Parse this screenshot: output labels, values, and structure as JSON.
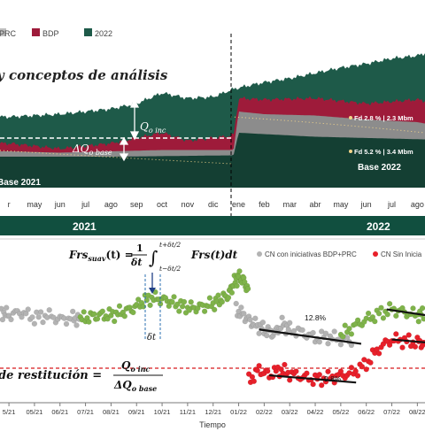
{
  "chart_data": [
    {
      "type": "area",
      "legend": [
        "PRC",
        "BDP",
        "2022"
      ],
      "legend_placement": "top-left",
      "title": "y conceptos de análisis",
      "x_ticks": [
        "r",
        "may",
        "jun",
        "jul",
        "ago",
        "sep",
        "oct",
        "nov",
        "dic",
        "ene",
        "feb",
        "mar",
        "abr",
        "may",
        "jun",
        "jul",
        "ago"
      ],
      "x_tick_index": [
        0,
        1,
        2,
        3,
        4,
        5,
        6,
        7,
        8,
        9,
        10,
        11,
        12,
        13,
        14,
        15,
        16
      ],
      "x_range": [
        -0.35,
        16.3
      ],
      "year_labels": [
        "2021",
        "2022"
      ],
      "period_boundary_index": 8.8,
      "series": [
        {
          "name": "2022",
          "color": "#1e5a49",
          "x": [
            0,
            1,
            2,
            3,
            4,
            5,
            6,
            7,
            8,
            8.8,
            9.5,
            10,
            11,
            12,
            13,
            14,
            15,
            16,
            16.3
          ],
          "values": [
            0.42,
            0.43,
            0.44,
            0.46,
            0.48,
            0.52,
            0.6,
            0.56,
            0.57,
            0.63,
            0.66,
            0.68,
            0.71,
            0.75,
            0.79,
            0.82,
            0.86,
            0.88,
            0.9
          ]
        },
        {
          "name": "BDP",
          "color": "#9e1b3a",
          "x": [
            0,
            2,
            4,
            5,
            6,
            7,
            8,
            8.8,
            9,
            10,
            12,
            14,
            16,
            16.3
          ],
          "values": [
            0.22,
            0.18,
            0.22,
            0.26,
            0.3,
            0.24,
            0.26,
            0.28,
            0.56,
            0.55,
            0.56,
            0.52,
            0.55,
            0.54
          ]
        },
        {
          "name": "gray",
          "color": "#8c8c8c",
          "x": [
            0,
            2,
            4,
            6,
            8,
            8.8,
            9,
            10,
            12,
            14,
            16,
            16.3
          ],
          "values": [
            0.16,
            0.15,
            0.16,
            0.17,
            0.17,
            0.17,
            0.46,
            0.44,
            0.43,
            0.4,
            0.38,
            0.37
          ]
        },
        {
          "name": "base",
          "color": "#143f33",
          "x": [
            0,
            4,
            8.8,
            9,
            12,
            16.3
          ],
          "values": [
            0.12,
            0.12,
            0.13,
            0.3,
            0.27,
            0.25
          ]
        }
      ],
      "annotations": {
        "q_inc": "Q",
        "q_inc_sub": "o inc",
        "dq_base": "ΔQ",
        "dq_base_sub": "o base",
        "fd1": "Fd 2.8 % | 2.3 Mbm",
        "fd2": "Fd 5.2 % | 3.4 Mbm",
        "base1": "Base 2021",
        "base2": "Base 2022"
      }
    },
    {
      "type": "scatter",
      "xlabel": "Tiempo",
      "x_ticks": [
        "5/21",
        "05/21",
        "06/21",
        "07/21",
        "08/21",
        "09/21",
        "10/21",
        "11/21",
        "12/21",
        "01/22",
        "02/22",
        "03/22",
        "04/22",
        "05/22",
        "06/22",
        "07/22",
        "08/22"
      ],
      "x_tick_index": [
        0,
        1,
        2,
        3,
        4,
        5,
        6,
        7,
        8,
        9,
        10,
        11,
        12,
        13,
        14,
        15,
        16
      ],
      "x_range": [
        -0.35,
        16.3
      ],
      "y_range": [
        0,
        1
      ],
      "legend": [
        "CN con iniciativas BDP+PRC",
        "CN Sin Inicia"
      ],
      "legend_placement": "top-right",
      "reference_line": 0.21,
      "series": [
        {
          "name": "CN con iniciativas BDP+PRC",
          "color": "#b3b3b3",
          "part": "before",
          "x": [
            -0.3,
            0,
            0.5,
            1,
            1.5,
            2,
            2.5,
            2.8
          ],
          "values": [
            0.6,
            0.58,
            0.6,
            0.56,
            0.58,
            0.55,
            0.56,
            0.55
          ]
        },
        {
          "name": "CN con iniciativas BDP+PRC",
          "color": "#7fb34a",
          "part": "during",
          "x": [
            2.8,
            3.2,
            3.6,
            4,
            4.4,
            4.8,
            5.2,
            5.6,
            6,
            6.4,
            6.8,
            7.2,
            7.6,
            8,
            8.3,
            8.6,
            8.8,
            9.0,
            9.2,
            9.4
          ],
          "values": [
            0.55,
            0.57,
            0.58,
            0.58,
            0.6,
            0.62,
            0.67,
            0.7,
            0.69,
            0.67,
            0.64,
            0.63,
            0.64,
            0.66,
            0.69,
            0.72,
            0.8,
            0.85,
            0.82,
            0.74
          ]
        },
        {
          "name": "CN con iniciativas BDP+PRC",
          "color": "#b3b3b3",
          "part": "scatter-2022",
          "x": [
            8.9,
            9.2,
            9.5,
            9.8,
            10.1,
            10.4,
            10.7,
            11,
            11.5,
            12,
            12.5,
            13,
            13.5
          ],
          "values": [
            0.62,
            0.58,
            0.53,
            0.5,
            0.47,
            0.45,
            0.52,
            0.48,
            0.46,
            0.42,
            0.43,
            0.41,
            0.4
          ]
        },
        {
          "name": "CN con iniciativas BDP+PRC",
          "color": "#7fb34a",
          "part": "green-2022",
          "x": [
            13,
            13.5,
            14,
            14.5,
            15,
            15.5,
            16,
            16.3
          ],
          "values": [
            0.44,
            0.5,
            0.55,
            0.59,
            0.62,
            0.6,
            0.58,
            0.59
          ]
        },
        {
          "name": "CN Sin Inicia",
          "color": "#e8202a",
          "part": "red-2022",
          "x": [
            9.4,
            9.8,
            10.2,
            10.6,
            11,
            11.5,
            12,
            12.5,
            13,
            13.5,
            14,
            14.5,
            15,
            15.5,
            16,
            16.3
          ],
          "values": [
            0.12,
            0.2,
            0.16,
            0.2,
            0.17,
            0.15,
            0.13,
            0.14,
            0.16,
            0.18,
            0.24,
            0.35,
            0.41,
            0.4,
            0.39,
            0.38
          ]
        }
      ],
      "trend_lines": [
        {
          "x": [
            9.8,
            13.8
          ],
          "values": [
            0.48,
            0.38
          ]
        },
        {
          "x": [
            10.2,
            13.6
          ],
          "values": [
            0.16,
            0.11
          ]
        },
        {
          "x": [
            14.8,
            16.3
          ],
          "values": [
            0.62,
            0.58
          ]
        },
        {
          "x": [
            15,
            16.3
          ],
          "values": [
            0.41,
            0.39
          ]
        }
      ],
      "annotations": {
        "pct1": "12.8%",
        "pct2": "9.8%",
        "dt": "δt",
        "formula_lhs": "Frs",
        "formula_sub": "suav",
        "formula_arg": "(t) =",
        "formula_num": "1",
        "formula_den": "δt",
        "formula_up": "t+δt/2",
        "formula_low": "t−δt/2",
        "formula_int": "Frs(t)dt",
        "restitucion": "de restitución =",
        "ratio_num": "Q",
        "ratio_num_sub": "o inc",
        "ratio_den": "ΔQ",
        "ratio_den_sub": "o base"
      }
    }
  ]
}
